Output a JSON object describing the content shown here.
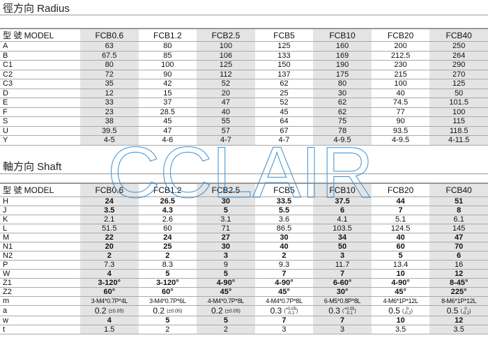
{
  "radius": {
    "title": "徑方向  Radius",
    "model_label": "型  號 MODEL",
    "models": [
      "FCB0.6",
      "FCB1.2",
      "FCB2.5",
      "FCB5",
      "FCB10",
      "FCB20",
      "FCB40"
    ],
    "rows": [
      {
        "label": "A",
        "values": [
          "63",
          "80",
          "100",
          "125",
          "160",
          "200",
          "250"
        ]
      },
      {
        "label": "B",
        "values": [
          "67.5",
          "85",
          "106",
          "133",
          "169",
          "212.5",
          "264"
        ]
      },
      {
        "label": "C1",
        "values": [
          "80",
          "100",
          "125",
          "150",
          "190",
          "230",
          "290"
        ]
      },
      {
        "label": "C2",
        "values": [
          "72",
          "90",
          "112",
          "137",
          "175",
          "215",
          "270"
        ]
      },
      {
        "label": "C3",
        "values": [
          "35",
          "42",
          "52",
          "62",
          "80",
          "100",
          "125"
        ]
      },
      {
        "label": "D",
        "values": [
          "12",
          "15",
          "20",
          "25",
          "30",
          "40",
          "50"
        ]
      },
      {
        "label": "E",
        "values": [
          "33",
          "37",
          "47",
          "52",
          "62",
          "74.5",
          "101.5"
        ]
      },
      {
        "label": "F",
        "values": [
          "23",
          "28.5",
          "40",
          "45",
          "62",
          "77",
          "100"
        ]
      },
      {
        "label": "S",
        "values": [
          "38",
          "45",
          "55",
          "64",
          "75",
          "90",
          "115"
        ]
      },
      {
        "label": "U",
        "values": [
          "39.5",
          "47",
          "57",
          "67",
          "78",
          "93.5",
          "118.5"
        ]
      },
      {
        "label": "Y",
        "values": [
          "4-5",
          "4-6",
          "4-7",
          "4-7",
          "4-9.5",
          "4-9.5",
          "4-11.5"
        ]
      }
    ]
  },
  "shaft": {
    "title": "軸方向  Shaft",
    "model_label": "型  號 MODEL",
    "models": [
      "FCB0.6",
      "FCB1.2",
      "FCB2.5",
      "FCB5",
      "FCB10",
      "FCB20",
      "FCB40"
    ],
    "rows": [
      {
        "label": "H",
        "values": [
          "24",
          "26.5",
          "30",
          "33.5",
          "37.5",
          "44",
          "51"
        ]
      },
      {
        "label": "J",
        "values": [
          "3.5",
          "4.3",
          "5",
          "5.5",
          "6",
          "7",
          "8"
        ]
      },
      {
        "label": "K",
        "values": [
          "2.1",
          "2.6",
          "3.1",
          "3.6",
          "4.1",
          "5.1",
          "6.1"
        ]
      },
      {
        "label": "L",
        "values": [
          "51.5",
          "60",
          "71",
          "86.5",
          "103.5",
          "124.5",
          "145"
        ]
      },
      {
        "label": "M",
        "values": [
          "22",
          "24",
          "27",
          "30",
          "34",
          "40",
          "47"
        ]
      },
      {
        "label": "N1",
        "values": [
          "20",
          "25",
          "30",
          "40",
          "50",
          "60",
          "70"
        ]
      },
      {
        "label": "N2",
        "values": [
          "2",
          "2",
          "3",
          "2",
          "3",
          "5",
          "6"
        ]
      },
      {
        "label": "P",
        "values": [
          "7.3",
          "8.3",
          "9",
          "9.3",
          "11.7",
          "13.4",
          "16"
        ]
      },
      {
        "label": "W",
        "values": [
          "4",
          "5",
          "5",
          "7",
          "7",
          "10",
          "12"
        ]
      },
      {
        "label": "Z1",
        "values": [
          "3-120°",
          "3-120°",
          "4-90°",
          "4-90°",
          "6-60°",
          "4-90°",
          "8-45°"
        ]
      },
      {
        "label": "Z2",
        "values": [
          "60°",
          "60°",
          "45°",
          "45°",
          "30°",
          "45°",
          "225°"
        ]
      },
      {
        "label": "m",
        "values": [
          "3-M4*0.7P*4L",
          "3-M4*0.7P*6L",
          "4-M4*0.7P*8L",
          "4-M4*0.7P*8L",
          "6-M5*0.8P*8L",
          "4-M6*1P*12L",
          "8-M6*1P*12L"
        ]
      },
      {
        "label": "a",
        "tolerances": [
          {
            "main": "0.2",
            "tol": "±0.05"
          },
          {
            "main": "0.2",
            "tol": "±0.05"
          },
          {
            "main": "0.2",
            "tol": "±0.05"
          },
          {
            "main": "0.3",
            "upper": "+0.05",
            "lower": "-0.1"
          },
          {
            "main": "0.3",
            "upper": "+0.05",
            "lower": "-0.1"
          },
          {
            "main": "0.5",
            "upper": "0",
            "lower": "-0.2"
          },
          {
            "main": "0.5",
            "upper": "0",
            "lower": "-0.2"
          }
        ]
      },
      {
        "label": "w",
        "values": [
          "4",
          "5",
          "5",
          "7",
          "7",
          "10",
          "12"
        ]
      },
      {
        "label": "t",
        "values": [
          "1.5",
          "2",
          "2",
          "3",
          "3",
          "3.5",
          "3.5"
        ]
      }
    ]
  },
  "watermark": {
    "text": "CCLAIR",
    "color": "#3a8fd0"
  },
  "colors": {
    "shade": "#e4e4e4",
    "rule": "#999999"
  }
}
